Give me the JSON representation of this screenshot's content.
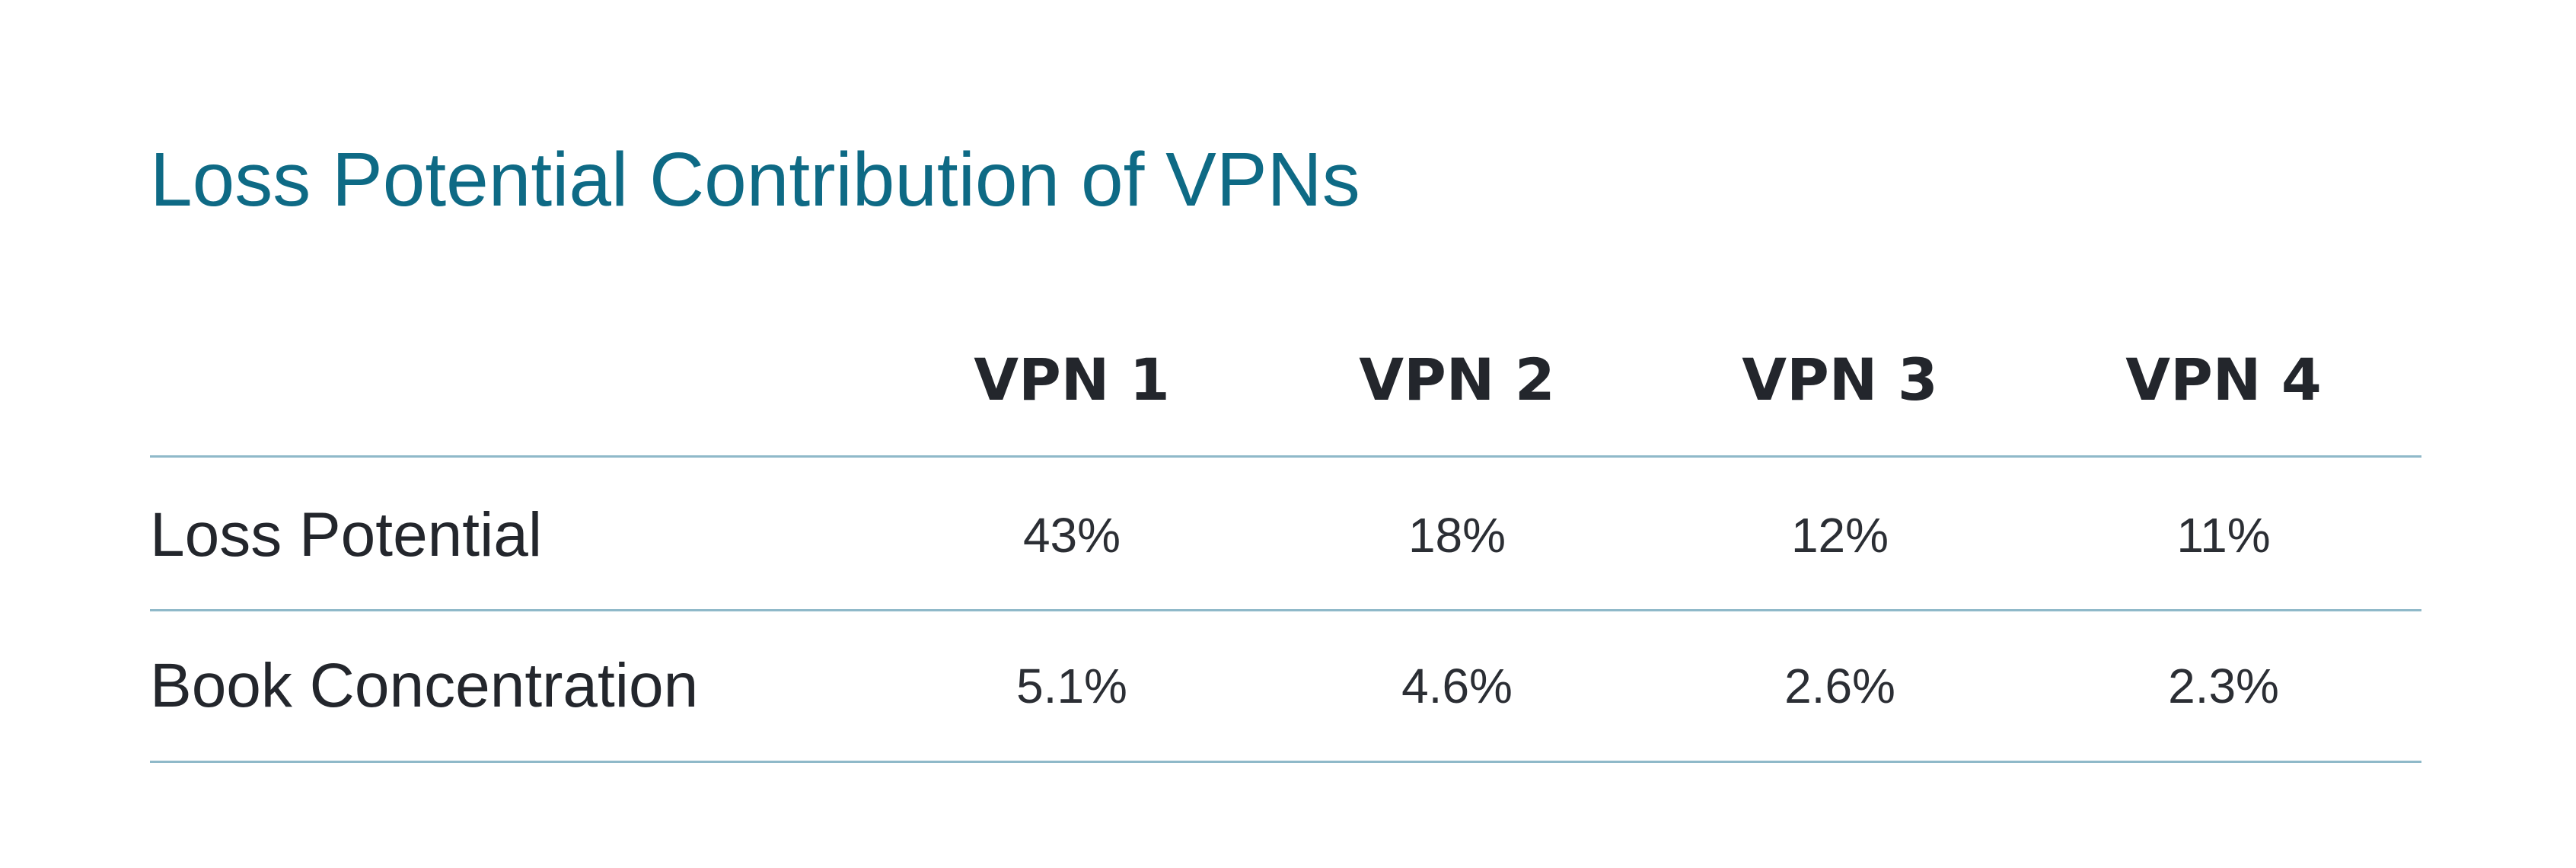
{
  "title": "Loss Potential Contribution of VPNs",
  "table": {
    "columns": [
      "VPN 1",
      "VPN 2",
      "VPN 3",
      "VPN 4"
    ],
    "rows": [
      {
        "label": "Loss Potential",
        "cells": [
          "43%",
          "18%",
          "12%",
          "11%"
        ]
      },
      {
        "label": "Book Concentration",
        "cells": [
          "5.1%",
          "4.6%",
          "2.6%",
          "2.3%"
        ]
      }
    ]
  }
}
